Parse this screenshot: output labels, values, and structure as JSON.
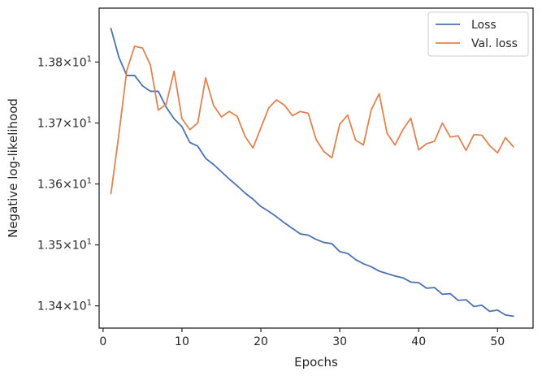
{
  "chart_data": {
    "type": "line",
    "title": "",
    "xlabel": "Epochs",
    "ylabel": "Negative log-likelihood",
    "xlim": [
      -0.5,
      54.5
    ],
    "ylim": [
      13.3635,
      13.8885
    ],
    "xticks": [
      0,
      10,
      20,
      30,
      40,
      50
    ],
    "xtick_labels": [
      "0",
      "10",
      "20",
      "30",
      "40",
      "50"
    ],
    "yticks": [
      13.4,
      13.5,
      13.6,
      13.7,
      13.8
    ],
    "ytick_labels": [
      {
        "base": "1.34",
        "sep": "×",
        "exp_base": "10",
        "exp": "1"
      },
      {
        "base": "1.35",
        "sep": "×",
        "exp_base": "10",
        "exp": "1"
      },
      {
        "base": "1.36",
        "sep": "×",
        "exp_base": "10",
        "exp": "1"
      },
      {
        "base": "1.37",
        "sep": "×",
        "exp_base": "10",
        "exp": "1"
      },
      {
        "base": "1.38",
        "sep": "×",
        "exp_base": "10",
        "exp": "1"
      }
    ],
    "grid": false,
    "legend_position": "top-right",
    "x": [
      1,
      2,
      3,
      4,
      5,
      6,
      7,
      8,
      9,
      10,
      11,
      12,
      13,
      14,
      15,
      16,
      17,
      18,
      19,
      20,
      21,
      22,
      23,
      24,
      25,
      26,
      27,
      28,
      29,
      30,
      31,
      32,
      33,
      34,
      35,
      36,
      37,
      38,
      39,
      40,
      41,
      42,
      43,
      44,
      45,
      46,
      47,
      48,
      49,
      50,
      51,
      52
    ],
    "series": [
      {
        "name": "Loss",
        "color": "#4c72b0",
        "values": [
          13.855,
          13.808,
          13.778,
          13.778,
          13.761,
          13.752,
          13.752,
          13.726,
          13.707,
          13.694,
          13.668,
          13.662,
          13.642,
          13.632,
          13.62,
          13.608,
          13.597,
          13.585,
          13.575,
          13.563,
          13.555,
          13.546,
          13.536,
          13.527,
          13.518,
          13.516,
          13.509,
          13.504,
          13.502,
          13.489,
          13.486,
          13.476,
          13.469,
          13.464,
          13.457,
          13.453,
          13.449,
          13.446,
          13.439,
          13.438,
          13.429,
          13.43,
          13.419,
          13.42,
          13.409,
          13.41,
          13.399,
          13.401,
          13.391,
          13.393,
          13.385,
          13.383
        ]
      },
      {
        "name": "Val. loss",
        "color": "#dd8452",
        "values": [
          13.584,
          13.681,
          13.786,
          13.826,
          13.823,
          13.795,
          13.721,
          13.731,
          13.785,
          13.707,
          13.689,
          13.7,
          13.774,
          13.729,
          13.71,
          13.719,
          13.711,
          13.678,
          13.659,
          13.692,
          13.725,
          13.738,
          13.729,
          13.712,
          13.719,
          13.716,
          13.673,
          13.653,
          13.643,
          13.698,
          13.713,
          13.672,
          13.664,
          13.722,
          13.748,
          13.683,
          13.664,
          13.689,
          13.708,
          13.656,
          13.666,
          13.67,
          13.7,
          13.677,
          13.679,
          13.655,
          13.681,
          13.68,
          13.663,
          13.651,
          13.676,
          13.661
        ]
      }
    ]
  }
}
